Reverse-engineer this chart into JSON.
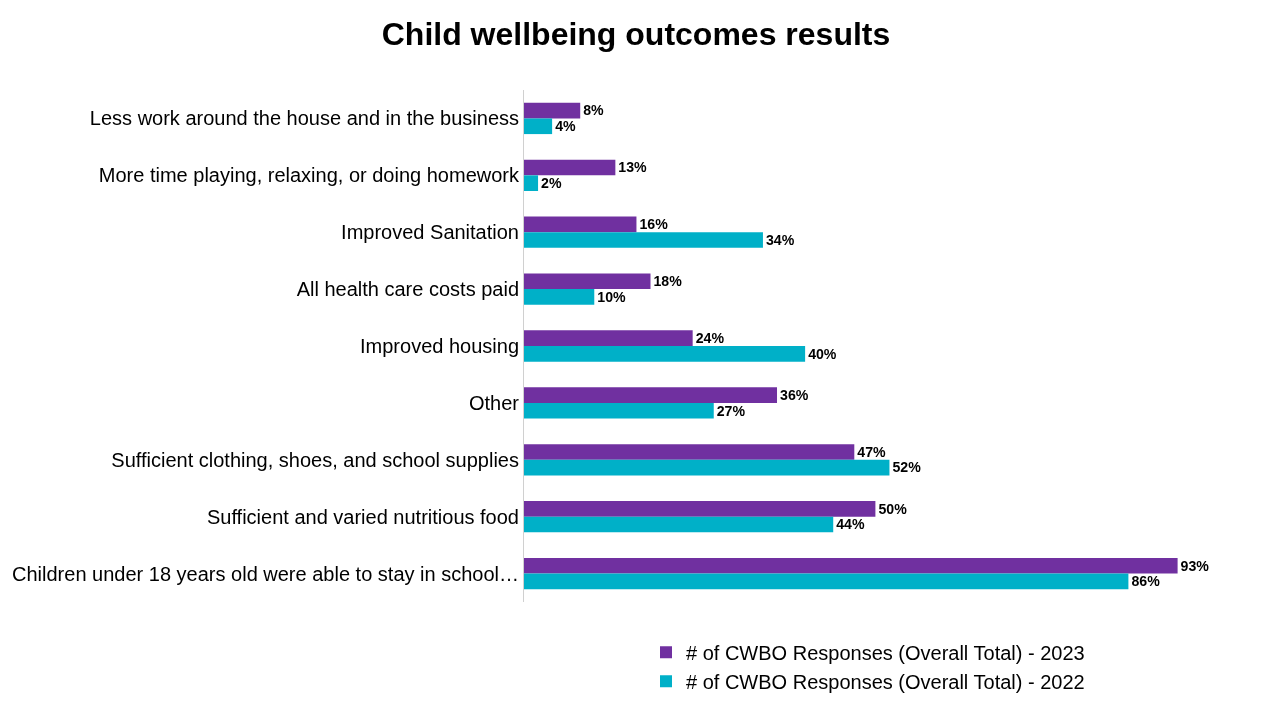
{
  "chart_data": {
    "type": "bar",
    "orientation": "horizontal",
    "title": "Child wellbeing outcomes results",
    "categories": [
      "Less work around the house and in the business",
      "More time playing, relaxing, or doing homework",
      "Improved Sanitation",
      "All health care costs paid",
      "Improved housing",
      "Other",
      "Sufficient clothing, shoes, and school supplies",
      "Sufficient and varied nutritious food",
      "Children under 18 years old were able to stay in school…"
    ],
    "series": [
      {
        "name": "# of CWBO Responses (Overall Total) - 2023",
        "color": "#7030a0",
        "values": [
          8,
          13,
          16,
          18,
          24,
          36,
          47,
          50,
          93
        ],
        "value_labels": [
          "8%",
          "13%",
          "16%",
          "18%",
          "24%",
          "36%",
          "47%",
          "50%",
          "93%"
        ]
      },
      {
        "name": "# of CWBO Responses (Overall Total) - 2022",
        "color": "#00b0c8",
        "values": [
          4,
          2,
          34,
          10,
          40,
          27,
          52,
          44,
          86
        ],
        "value_labels": [
          "4%",
          "2%",
          "34%",
          "10%",
          "40%",
          "27%",
          "52%",
          "44%",
          "86%"
        ]
      }
    ],
    "legend": "bottom",
    "grid": false
  }
}
